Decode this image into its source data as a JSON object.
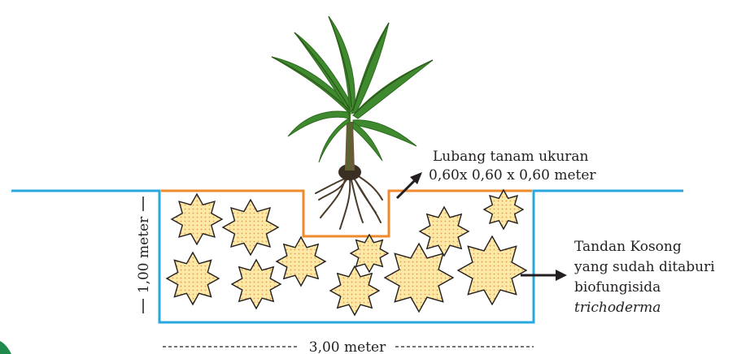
{
  "labels": {
    "planting_hole_line1": "Lubang tanam ukuran",
    "planting_hole_line2": "0,60x 0,60 x 0,60 meter",
    "bunch_line1": "Tandan Kosong",
    "bunch_line2": "yang sudah ditaburi",
    "bunch_line3": "biofungisida",
    "bunch_line4": "trichoderma",
    "depth": "1,00 meter",
    "width": "3,00 meter"
  },
  "colors": {
    "ground_line": "#29a8e0",
    "planting_hole_outline": "#ee8a2b",
    "bunch_fill": "#fde9a6",
    "bunch_stroke": "#231f20",
    "bunch_dots": "#e07a3a",
    "palm_leaf": "#3f8a2e",
    "root": "#4a3a2a",
    "corner_accent": "#1f8a4c"
  },
  "icons": {
    "plant": "oil-palm-seedling",
    "bunches": "empty-fruit-bunch-star"
  }
}
